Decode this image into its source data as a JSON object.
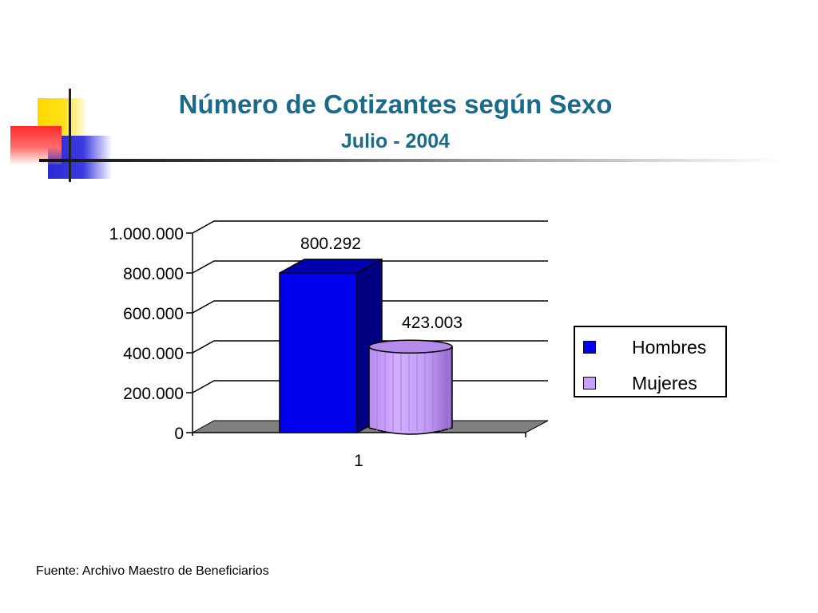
{
  "slide": {
    "title": "Número de Cotizantes según Sexo",
    "subtitle": "Julio - 2004",
    "source": "Fuente: Archivo Maestro de Beneficiarios"
  },
  "chart_data": {
    "type": "bar",
    "title": "",
    "xlabel": "",
    "ylabel": "",
    "categories": [
      "1"
    ],
    "series": [
      {
        "name": "Hombres",
        "values": [
          800292
        ],
        "label": "800.292",
        "color": "#0000ee",
        "shape": "box"
      },
      {
        "name": "Mujeres",
        "values": [
          423003
        ],
        "label": "423.003",
        "color": "#c9a0ff",
        "shape": "cylinder"
      }
    ],
    "ylim": [
      0,
      1000000
    ],
    "yticks": [
      0,
      200000,
      400000,
      600000,
      800000,
      1000000
    ],
    "ytick_labels": [
      "0",
      "200.000",
      "400.000",
      "600.000",
      "800.000",
      "1.000.000"
    ],
    "grid": true,
    "legend": "right",
    "style": "3d"
  },
  "colors": {
    "title": "#1a6a8a",
    "floor": "#808080"
  }
}
